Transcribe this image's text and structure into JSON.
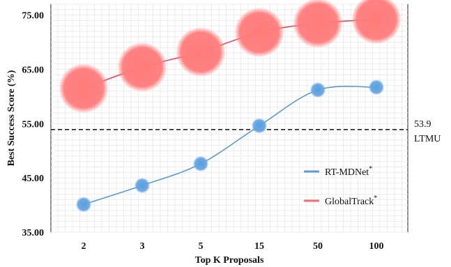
{
  "chart_data": {
    "type": "line",
    "categories": [
      "2",
      "3",
      "5",
      "15",
      "50",
      "100"
    ],
    "xlabel": "Top K Proposals",
    "ylabel": "Best Success Score (%)",
    "ylim": [
      35,
      77
    ],
    "yticks": [
      "35.00",
      "45.00",
      "55.00",
      "65.00",
      "75.00"
    ],
    "ytick_values": [
      35,
      45,
      55,
      65,
      75
    ],
    "grid": true,
    "legend_position": "right",
    "series": [
      {
        "name": "RT-MDNet",
        "name_suffix": "*",
        "color": "#5b9bd5",
        "values": [
          40.1,
          43.6,
          47.6,
          54.6,
          61.2,
          61.7
        ]
      },
      {
        "name": "GlobalTrack",
        "name_suffix": "*",
        "color": "#f07070",
        "values": [
          61.5,
          65.4,
          68.2,
          71.8,
          73.5,
          74.2
        ]
      }
    ],
    "reference_line": {
      "value": 53.9,
      "value_label": "53.9",
      "label": "LTMU",
      "style": "dashed"
    }
  }
}
